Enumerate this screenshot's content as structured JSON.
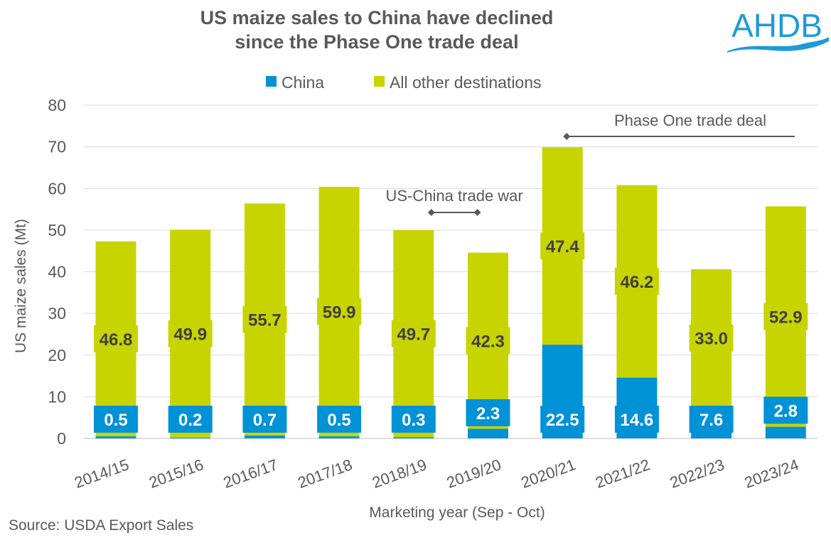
{
  "chart_data": {
    "type": "bar",
    "stacked": true,
    "title": "US maize sales to China have declined since the Phase One trade deal",
    "title_lines": [
      "US maize sales to China have declined",
      "since the Phase One trade deal"
    ],
    "xlabel": "Marketing year (Sep - Oct)",
    "ylabel": "US maize sales (Mt)",
    "ylim": [
      0,
      80
    ],
    "yticks": [
      0,
      10,
      20,
      30,
      40,
      50,
      60,
      70,
      80
    ],
    "grid": true,
    "legend_position": "top",
    "categories": [
      "2014/15",
      "2015/16",
      "2016/17",
      "2017/18",
      "2018/19",
      "2019/20",
      "2020/21",
      "2021/22",
      "2022/23",
      "2023/24"
    ],
    "series": [
      {
        "name": "China",
        "color": "#0092D6",
        "values": [
          0.5,
          0.2,
          0.7,
          0.5,
          0.3,
          2.3,
          22.5,
          14.6,
          7.6,
          2.8
        ],
        "labels": [
          "0.5",
          "0.2",
          "0.7",
          "0.5",
          "0.3",
          "2.3",
          "22.5",
          "14.6",
          "7.6",
          "2.8"
        ]
      },
      {
        "name": "All other destinations",
        "color": "#C8D400",
        "values": [
          46.8,
          49.9,
          55.7,
          59.9,
          49.7,
          42.3,
          47.4,
          46.2,
          33.0,
          52.9
        ],
        "labels": [
          "46.8",
          "49.9",
          "55.7",
          "59.9",
          "49.7",
          "42.3",
          "47.4",
          "46.2",
          "33.0",
          "52.9"
        ]
      }
    ],
    "annotations": [
      {
        "text": "US-China trade war",
        "from": "2018/19",
        "to": "2019/20"
      },
      {
        "text": "Phase One trade deal",
        "from": "2020/21",
        "to": "2023/24"
      }
    ]
  },
  "source": "Source: USDA Export Sales",
  "logo_text": "AHDB",
  "colors": {
    "brand": "#1E9BD7",
    "text": "#595959",
    "grid": "#D9D9D9"
  }
}
